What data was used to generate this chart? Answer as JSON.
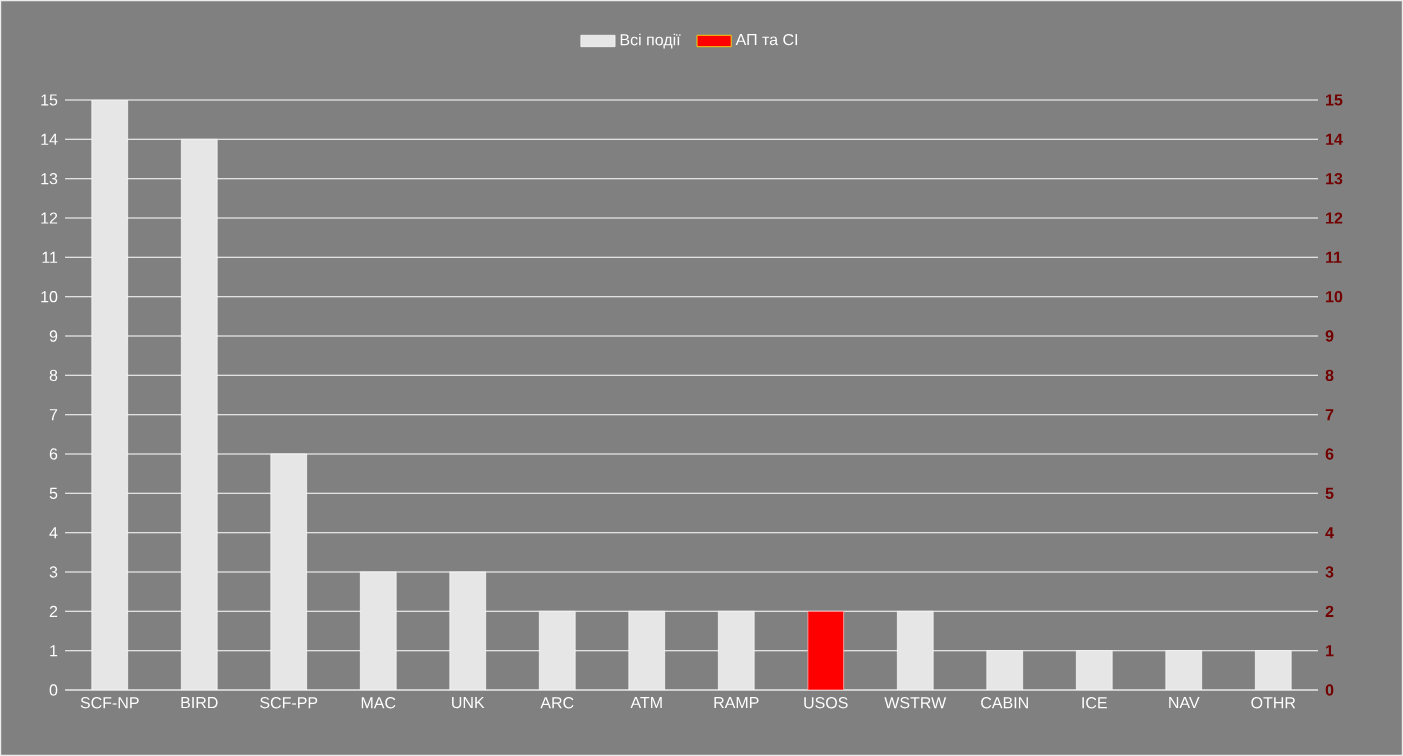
{
  "chart_data": {
    "type": "bar",
    "categories": [
      "SCF-NP",
      "BIRD",
      "SCF-PP",
      "MAC",
      "UNK",
      "ARC",
      "ATM",
      "RAMP",
      "USOS",
      "WSTRW",
      "CABIN",
      "ICE",
      "NAV",
      "OTHR"
    ],
    "series": [
      {
        "name": "Всі події",
        "color": "#e6e6e6",
        "values": [
          15,
          14,
          6,
          3,
          3,
          2,
          2,
          2,
          null,
          2,
          1,
          1,
          1,
          1
        ]
      },
      {
        "name": "АП та СІ",
        "color": "#ff0000",
        "axis": "y2",
        "values": [
          null,
          null,
          null,
          null,
          null,
          null,
          null,
          null,
          2,
          null,
          null,
          null,
          null,
          null
        ]
      }
    ],
    "ylim": [
      0,
      15
    ],
    "yticks": [
      0,
      1,
      2,
      3,
      4,
      5,
      6,
      7,
      8,
      9,
      10,
      11,
      12,
      13,
      14,
      15
    ],
    "y2lim": [
      0,
      15
    ],
    "y2ticks": [
      0,
      1,
      2,
      3,
      4,
      5,
      6,
      7,
      8,
      9,
      10,
      11,
      12,
      13,
      14,
      15
    ],
    "grid": "y",
    "legend": "top"
  }
}
